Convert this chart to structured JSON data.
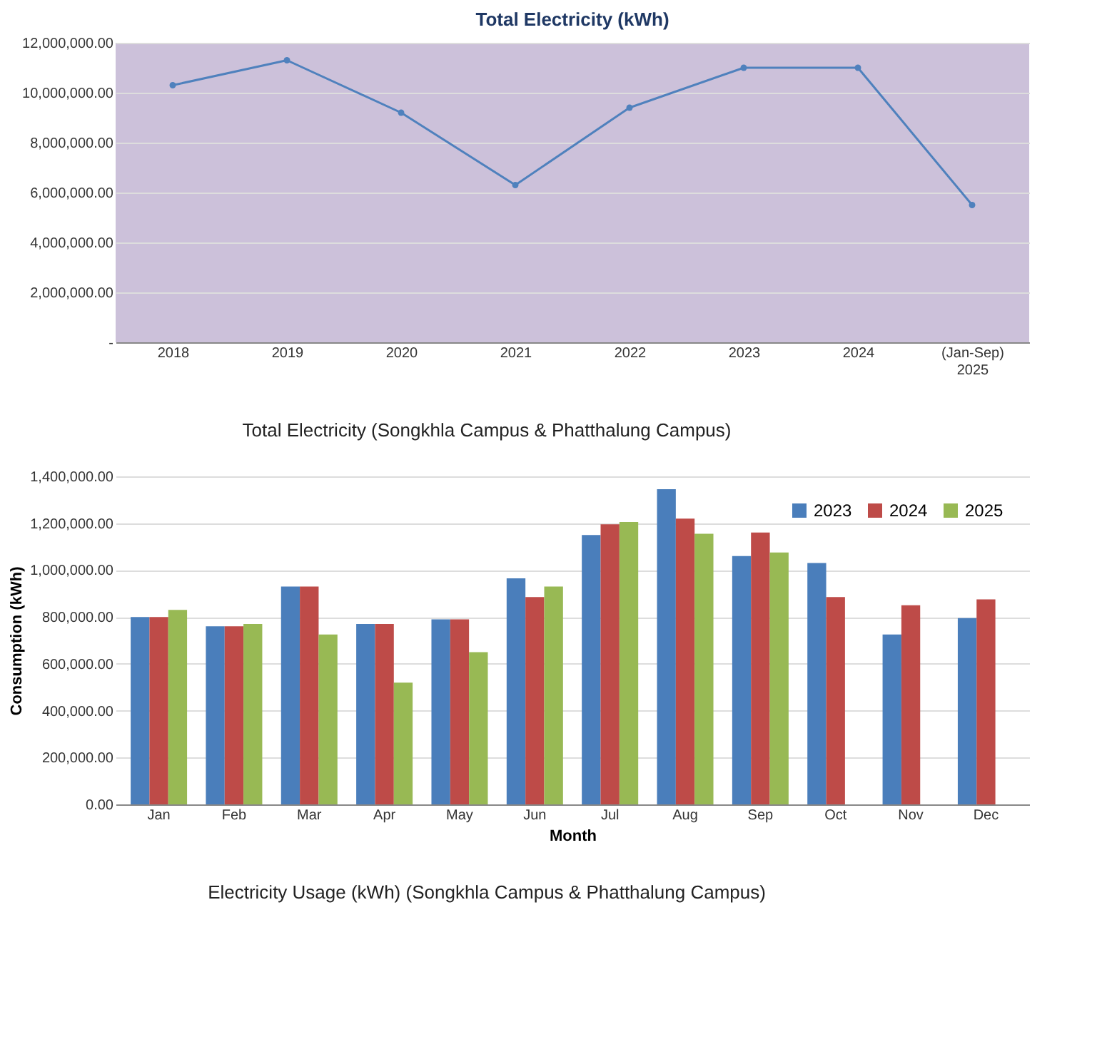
{
  "chart_data": [
    {
      "type": "line",
      "title": "Total Electricity (kWh)",
      "categories": [
        "2018",
        "2019",
        "2020",
        "2021",
        "2022",
        "2023",
        "2024",
        "(Jan-Sep)\n2025"
      ],
      "series": [
        {
          "color": "#4f81bd",
          "values": [
            10300000,
            11300000,
            9200000,
            6300000,
            9400000,
            11000000,
            11000000,
            5500000
          ]
        }
      ],
      "ylim": [
        0,
        12000000
      ],
      "yticks": [
        {
          "value": 0,
          "label": "-"
        },
        {
          "value": 2000000,
          "label": "2,000,000.00"
        },
        {
          "value": 4000000,
          "label": "4,000,000.00"
        },
        {
          "value": 6000000,
          "label": "6,000,000.00"
        },
        {
          "value": 8000000,
          "label": "8,000,000.00"
        },
        {
          "value": 10000000,
          "label": "10,000,000.00"
        },
        {
          "value": 12000000,
          "label": "12,000,000.00"
        }
      ],
      "grid": "y",
      "marker": "circle",
      "line_style": "solid",
      "legend": false,
      "annotations": [
        "Total Electricity (Songkhla Campus & Phatthalung Campus)"
      ]
    },
    {
      "type": "bar",
      "categories": [
        "Jan",
        "Feb",
        "Mar",
        "Apr",
        "May",
        "Jun",
        "Jul",
        "Aug",
        "Sep",
        "Oct",
        "Nov",
        "Dec"
      ],
      "series": [
        {
          "name": "2023",
          "color": "#4a7ebb",
          "values": [
            800000,
            760000,
            930000,
            770000,
            790000,
            965000,
            1150000,
            1345000,
            1060000,
            1030000,
            725000,
            795000
          ]
        },
        {
          "name": "2024",
          "color": "#be4b48",
          "values": [
            800000,
            760000,
            930000,
            770000,
            790000,
            885000,
            1195000,
            1220000,
            1160000,
            885000,
            850000,
            875000
          ]
        },
        {
          "name": "2025",
          "color": "#98b954",
          "values": [
            830000,
            770000,
            725000,
            520000,
            650000,
            930000,
            1205000,
            1155000,
            1075000,
            0,
            0,
            0
          ]
        }
      ],
      "xlabel": "Month",
      "ylabel": "Consumption (kWh)",
      "ylim": [
        0,
        1400000
      ],
      "yticks": [
        {
          "value": 0,
          "label": "0.00"
        },
        {
          "value": 200000,
          "label": "200,000.00"
        },
        {
          "value": 400000,
          "label": "400,000.00"
        },
        {
          "value": 600000,
          "label": "600,000.00"
        },
        {
          "value": 800000,
          "label": "800,000.00"
        },
        {
          "value": 1000000,
          "label": "1,000,000.00"
        },
        {
          "value": 1200000,
          "label": "1,200,000.00"
        },
        {
          "value": 1400000,
          "label": "1,400,000.00"
        }
      ],
      "grid": "y",
      "legend": "top right",
      "annotations": [
        "Electricity Usage (kWh) (Songkhla Campus & Phatthalung Campus)"
      ]
    }
  ]
}
